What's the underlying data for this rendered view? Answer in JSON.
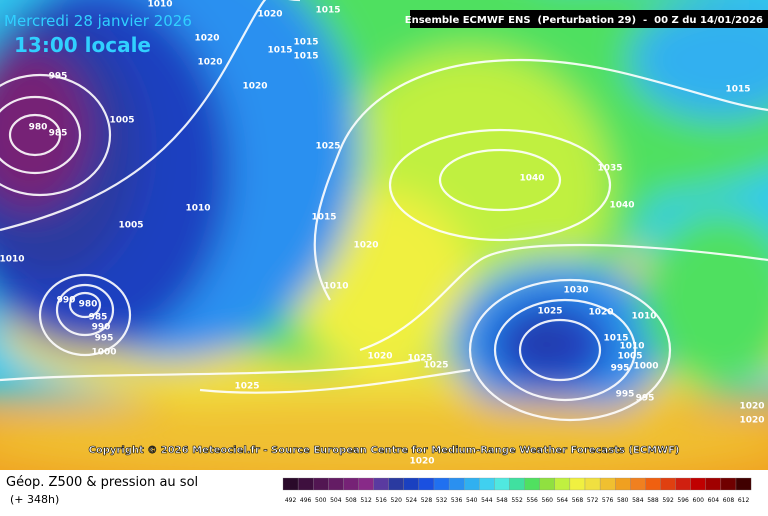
{
  "header": {
    "date": "Mercredi 28 janvier 2026",
    "time": "13:00 locale",
    "model": "Ensemble ECMWF ENS  (Perturbation 29)  -  00 Z du 14/01/2026"
  },
  "map": {
    "copyright": "Copyright © 2026 Meteociel.fr - Source European Centre for Medium-Range Weather Forecasts (ECMWF)",
    "isobar_labels": [
      1010,
      1020,
      1015,
      1020,
      1015,
      1015,
      1015,
      1020,
      1020,
      995,
      980,
      985,
      1005,
      1025,
      1040,
      1035,
      1015,
      1040,
      1010,
      1005,
      1015,
      1020,
      1010,
      1010,
      990,
      980,
      985,
      990,
      995,
      1000,
      1030,
      1025,
      1020,
      1010,
      1015,
      1010,
      1005,
      1000,
      995,
      995,
      995,
      1020,
      1025,
      1025,
      1025,
      1020,
      1020,
      1020
    ]
  },
  "legend": {
    "title": "Géop. Z500 & pression au sol",
    "lead_time": "(+ 348h)",
    "scale": [
      492,
      496,
      500,
      504,
      508,
      512,
      516,
      520,
      524,
      528,
      532,
      536,
      540,
      544,
      548,
      552,
      556,
      560,
      564,
      568,
      572,
      576,
      580,
      584,
      588,
      592,
      596,
      600,
      604,
      608,
      612
    ],
    "colors": [
      "#2a0a2a",
      "#3e0f3e",
      "#521652",
      "#641c64",
      "#762276",
      "#882a88",
      "#5a3aa0",
      "#2a3aa0",
      "#1a40c0",
      "#1a50e0",
      "#2070f0",
      "#2a90f0",
      "#30b0f0",
      "#40d0f0",
      "#50e8e0",
      "#40e0a0",
      "#50e060",
      "#90e040",
      "#c0f040",
      "#f0f040",
      "#f0e040",
      "#f0c030",
      "#f0a020",
      "#f08020",
      "#f06010",
      "#e04010",
      "#d02010",
      "#c00000",
      "#a00000",
      "#700000",
      "#400000"
    ]
  }
}
